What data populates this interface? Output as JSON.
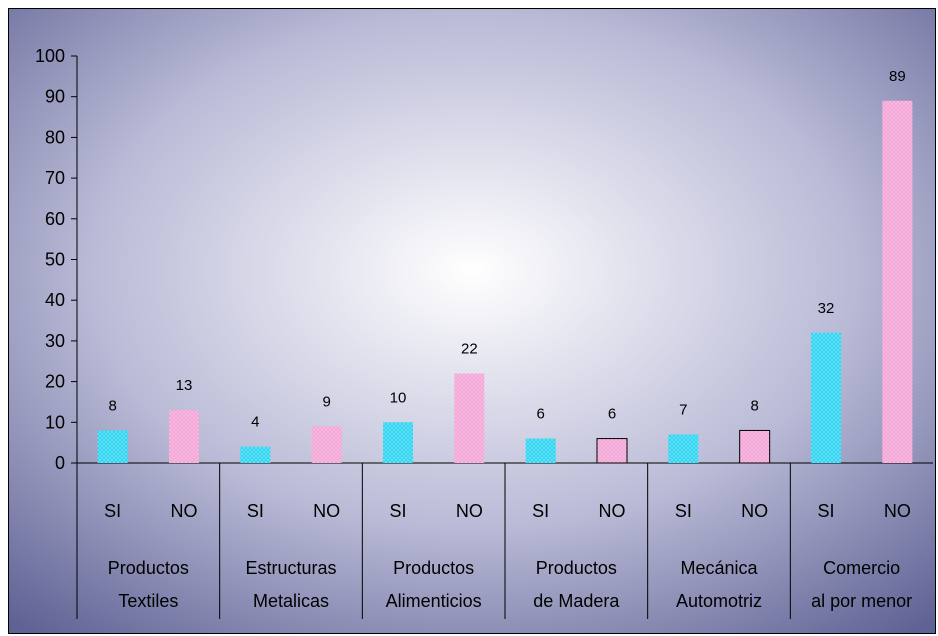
{
  "chart_data": {
    "type": "bar",
    "groups": [
      {
        "line1": "Productos",
        "line2": "Textiles"
      },
      {
        "line1": "Estructuras",
        "line2": "Metalicas"
      },
      {
        "line1": "Productos",
        "line2": "Alimenticios"
      },
      {
        "line1": "Productos",
        "line2": "de Madera"
      },
      {
        "line1": "Mecánica",
        "line2": "Automotriz"
      },
      {
        "line1": "Comercio",
        "line2": "al por menor"
      }
    ],
    "subcategories": [
      "SI",
      "NO"
    ],
    "series": [
      {
        "values": [
          8,
          4,
          10,
          6,
          7,
          32
        ],
        "color": "#33d6f2"
      },
      {
        "values": [
          13,
          9,
          22,
          6,
          8,
          89
        ],
        "color": "#f4a6d6"
      }
    ],
    "data_labels": [
      [
        "8",
        "13"
      ],
      [
        "4",
        "9"
      ],
      [
        "10",
        "22"
      ],
      [
        "6",
        "6"
      ],
      [
        "7",
        "8"
      ],
      [
        "32",
        "89"
      ]
    ],
    "ylim": [
      0,
      100
    ],
    "yticks": [
      "0",
      "10",
      "20",
      "30",
      "40",
      "50",
      "60",
      "70",
      "80",
      "90",
      "100"
    ],
    "ytick_values": [
      0,
      10,
      20,
      30,
      40,
      50,
      60,
      70,
      80,
      90,
      100
    ],
    "title": "",
    "xlabel": "",
    "ylabel": "",
    "legend": false,
    "grid": false,
    "background": {
      "center": "#ffffff",
      "edge": "#5f6294"
    }
  }
}
